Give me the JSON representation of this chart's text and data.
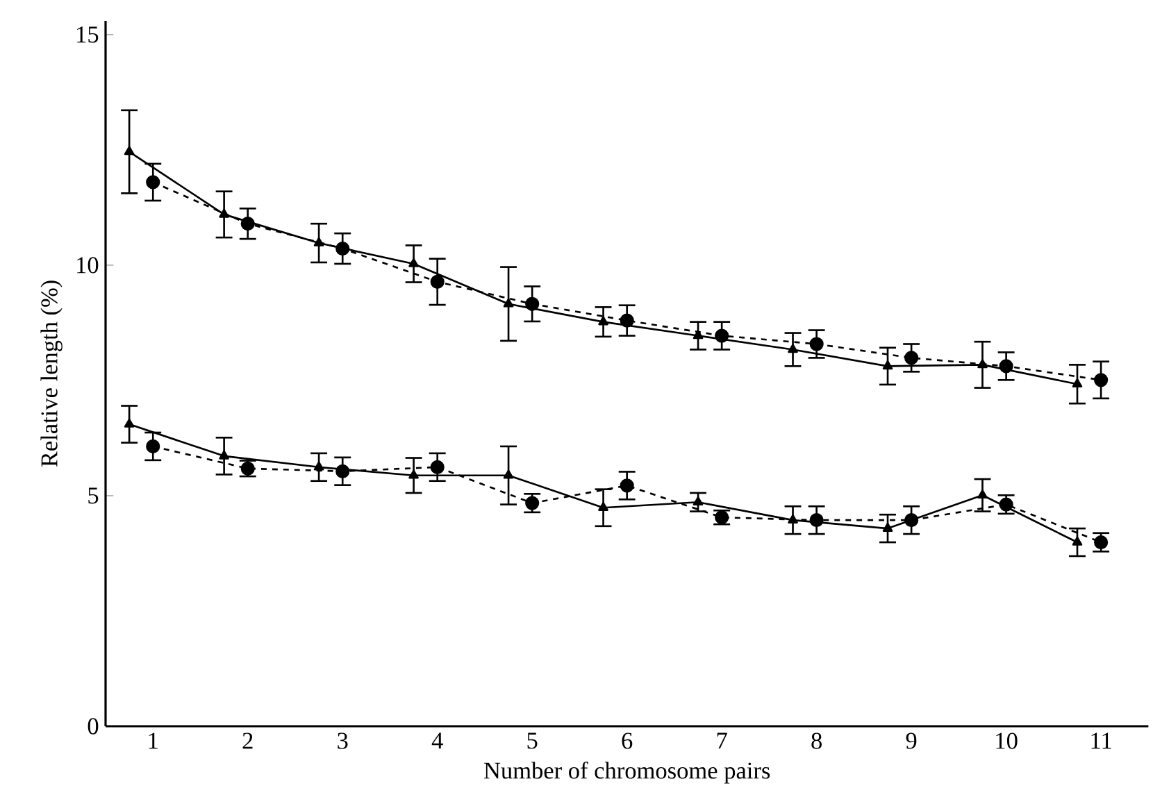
{
  "chart_data": {
    "type": "line",
    "xlabel": "Number of chromosome pairs",
    "ylabel": "Relative length (%)",
    "xlim": [
      0.5,
      11.5
    ],
    "xticks": [
      1,
      2,
      3,
      4,
      5,
      6,
      7,
      8,
      9,
      10,
      11
    ],
    "ylim": [
      0,
      15.3
    ],
    "yticks": [
      0,
      5,
      10,
      15
    ],
    "series": [
      {
        "color": "#000000",
        "marker": "triangle",
        "line_style": "solid",
        "x": [
          0.75,
          1.75,
          2.75,
          3.75,
          4.75,
          5.75,
          6.75,
          7.75,
          8.75,
          9.75,
          10.75
        ],
        "values": [
          12.46,
          11.1,
          10.48,
          10.03,
          9.16,
          8.77,
          8.47,
          8.17,
          7.81,
          7.84,
          7.42
        ],
        "errors": [
          0.9,
          0.5,
          0.42,
          0.4,
          0.8,
          0.32,
          0.3,
          0.36,
          0.4,
          0.5,
          0.42
        ]
      },
      {
        "color": "#000000",
        "marker": "circle",
        "line_style": "dashed",
        "x": [
          1,
          2,
          3,
          4,
          5,
          6,
          7,
          8,
          9,
          10,
          11
        ],
        "values": [
          11.8,
          10.9,
          10.36,
          9.64,
          9.16,
          8.8,
          8.47,
          8.29,
          7.99,
          7.81,
          7.51
        ],
        "errors": [
          0.4,
          0.33,
          0.33,
          0.5,
          0.38,
          0.33,
          0.3,
          0.3,
          0.3,
          0.3,
          0.4
        ]
      },
      {
        "color": "#000000",
        "marker": "triangle",
        "line_style": "solid",
        "x": [
          0.75,
          1.75,
          2.75,
          3.75,
          4.75,
          5.75,
          6.75,
          7.75,
          8.75,
          9.75,
          10.75
        ],
        "values": [
          6.55,
          5.86,
          5.62,
          5.44,
          5.44,
          4.74,
          4.86,
          4.47,
          4.29,
          5.01,
          3.99
        ],
        "errors": [
          0.4,
          0.4,
          0.3,
          0.38,
          0.63,
          0.4,
          0.2,
          0.3,
          0.3,
          0.35,
          0.3
        ]
      },
      {
        "color": "#000000",
        "marker": "circle",
        "line_style": "dashed",
        "x": [
          1,
          2,
          3,
          4,
          5,
          6,
          7,
          8,
          9,
          10,
          11
        ],
        "values": [
          6.07,
          5.59,
          5.53,
          5.62,
          4.84,
          5.22,
          4.53,
          4.47,
          4.47,
          4.81,
          3.99
        ],
        "errors": [
          0.3,
          0.17,
          0.3,
          0.3,
          0.2,
          0.3,
          0.15,
          0.3,
          0.3,
          0.2,
          0.2
        ]
      }
    ]
  }
}
